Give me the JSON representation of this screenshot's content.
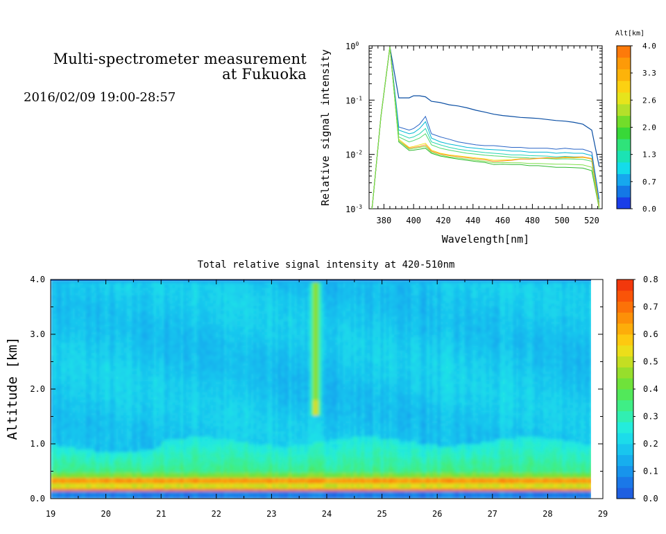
{
  "header": {
    "title_line1": "Multi-spectrometer measurement",
    "title_line2": "at Fukuoka",
    "time_range": "2016/02/09 19:00-28:57"
  },
  "chart_data": [
    {
      "type": "line",
      "xlabel": "Wavelength[nm]",
      "ylabel": "Relative signal intensity",
      "xlim": [
        370,
        527
      ],
      "ylim": [
        0.001,
        1
      ],
      "yscale": "log",
      "x_ticks": [
        380,
        400,
        420,
        440,
        460,
        480,
        500,
        520
      ],
      "y_ticks": [
        {
          "base": "10",
          "exp": "0"
        },
        {
          "base": "10",
          "exp": "-1"
        },
        {
          "base": "10",
          "exp": "-2"
        },
        {
          "base": "10",
          "exp": "-3"
        }
      ],
      "x": [
        372,
        378,
        384,
        390,
        397,
        400,
        404,
        408,
        412,
        418,
        424,
        430,
        436,
        442,
        448,
        454,
        460,
        466,
        472,
        478,
        484,
        490,
        496,
        502,
        508,
        514,
        520,
        525
      ],
      "series": [
        {
          "color": "#0a4ea3",
          "values": [
            0.001,
            0.05,
            0.95,
            0.11,
            0.11,
            0.12,
            0.12,
            0.115,
            0.095,
            0.09,
            0.082,
            0.078,
            0.072,
            0.065,
            0.06,
            0.055,
            0.052,
            0.05,
            0.048,
            0.047,
            0.046,
            0.044,
            0.042,
            0.041,
            0.039,
            0.036,
            0.028,
            0.006
          ]
        },
        {
          "color": "#2864c6",
          "values": [
            0.001,
            0.05,
            0.95,
            0.032,
            0.028,
            0.03,
            0.036,
            0.05,
            0.024,
            0.021,
            0.019,
            0.017,
            0.016,
            0.015,
            0.0145,
            0.0145,
            0.014,
            0.0135,
            0.0135,
            0.013,
            0.013,
            0.013,
            0.0125,
            0.013,
            0.0125,
            0.0125,
            0.011,
            0.0015
          ]
        },
        {
          "color": "#00b8d4",
          "values": [
            0.001,
            0.05,
            0.95,
            0.028,
            0.024,
            0.025,
            0.03,
            0.04,
            0.02,
            0.017,
            0.0155,
            0.0145,
            0.0135,
            0.013,
            0.0125,
            0.0122,
            0.012,
            0.0115,
            0.0115,
            0.011,
            0.011,
            0.011,
            0.0105,
            0.0108,
            0.0105,
            0.0105,
            0.0095,
            0.0013
          ]
        },
        {
          "color": "#24d6b0",
          "values": [
            0.001,
            0.05,
            0.95,
            0.024,
            0.02,
            0.021,
            0.024,
            0.03,
            0.017,
            0.015,
            0.0135,
            0.0125,
            0.0118,
            0.0113,
            0.0108,
            0.0105,
            0.0102,
            0.0098,
            0.0098,
            0.0095,
            0.0094,
            0.0093,
            0.009,
            0.0092,
            0.009,
            0.009,
            0.0082,
            0.0012
          ]
        },
        {
          "color": "#4cd96a",
          "values": [
            0.001,
            0.05,
            0.95,
            0.021,
            0.017,
            0.018,
            0.02,
            0.024,
            0.015,
            0.013,
            0.012,
            0.0112,
            0.0105,
            0.0101,
            0.0097,
            0.0094,
            0.0092,
            0.0089,
            0.0088,
            0.0086,
            0.0085,
            0.0084,
            0.0082,
            0.0083,
            0.0082,
            0.0081,
            0.0075,
            0.0011
          ]
        },
        {
          "color": "#f2e11a",
          "values": [
            0.001,
            0.05,
            0.95,
            0.019,
            0.0135,
            0.014,
            0.015,
            0.016,
            0.012,
            0.0105,
            0.0098,
            0.0094,
            0.009,
            0.0086,
            0.0083,
            0.0078,
            0.0079,
            0.008,
            0.0083,
            0.0082,
            0.0084,
            0.0086,
            0.0085,
            0.0087,
            0.0086,
            0.0088,
            0.0082,
            0.0011
          ]
        },
        {
          "color": "#ff8a1e",
          "values": [
            0.001,
            0.05,
            0.95,
            0.018,
            0.013,
            0.0135,
            0.014,
            0.015,
            0.0115,
            0.0102,
            0.0095,
            0.0091,
            0.0087,
            0.0083,
            0.008,
            0.0074,
            0.0076,
            0.0078,
            0.0082,
            0.0082,
            0.0085,
            0.0087,
            0.0086,
            0.0089,
            0.0088,
            0.009,
            0.0084,
            0.0011
          ]
        },
        {
          "color": "#2eb82e",
          "values": [
            0.001,
            0.05,
            0.95,
            0.017,
            0.0118,
            0.012,
            0.0125,
            0.013,
            0.0105,
            0.0093,
            0.0087,
            0.0082,
            0.0078,
            0.0074,
            0.0071,
            0.0065,
            0.0066,
            0.0065,
            0.0065,
            0.0062,
            0.0062,
            0.006,
            0.0058,
            0.0058,
            0.0057,
            0.0056,
            0.005,
            0.001
          ]
        },
        {
          "color": "#7fe04a",
          "values": [
            0.001,
            0.05,
            0.95,
            0.018,
            0.0125,
            0.0128,
            0.0135,
            0.014,
            0.011,
            0.0097,
            0.009,
            0.0086,
            0.0082,
            0.0078,
            0.0075,
            0.007,
            0.0071,
            0.007,
            0.007,
            0.0068,
            0.0068,
            0.0067,
            0.0066,
            0.0066,
            0.0065,
            0.0064,
            0.0058,
            0.001
          ]
        }
      ],
      "colorbar": {
        "title": "Alt[km]",
        "tick_labels": [
          "4.0",
          "3.3",
          "2.6",
          "2.0",
          "1.3",
          "0.7",
          "0.0"
        ],
        "colors_bottom_to_top": [
          "#1a3de8",
          "#1478e6",
          "#16a8ee",
          "#14dcea",
          "#1be3b4",
          "#2fe37a",
          "#38d838",
          "#72dd2a",
          "#b4e02a",
          "#e6e41c",
          "#fcd112",
          "#fdb30a",
          "#fd9a08",
          "#fd7a0a"
        ]
      }
    },
    {
      "type": "heatmap",
      "title": "Total relative signal intensity at 420-510nm",
      "ylabel": "Altitude [km]",
      "xlim": [
        19,
        29
      ],
      "ylim": [
        0,
        4
      ],
      "x_data_end": 28.8,
      "x_ticks": [
        "19",
        "20",
        "21",
        "22",
        "23",
        "24",
        "25",
        "26",
        "27",
        "28",
        "29"
      ],
      "y_ticks": [
        "0.0",
        "1.0",
        "2.0",
        "3.0",
        "4.0"
      ],
      "features": {
        "surface_layer_km": [
          0.15,
          0.45
        ],
        "aerosol_layer_top_km": 1.05,
        "plume_time": 23.8,
        "plume_altitude_km": [
          1.5,
          4.0
        ]
      },
      "colorbar": {
        "tick_labels": [
          "0.8",
          "0.7",
          "0.6",
          "0.5",
          "0.4",
          "0.3",
          "0.2",
          "0.1",
          "0.0"
        ],
        "vmin": 0,
        "vmax": 0.8,
        "colors_bottom_to_top": [
          "#1f5fe0",
          "#1a78e8",
          "#1794ec",
          "#17aeee",
          "#19c6ee",
          "#1cdcea",
          "#24ecdc",
          "#31efb2",
          "#3fee86",
          "#52e85a",
          "#6fe23a",
          "#97de2c",
          "#c4de22",
          "#ecde1a",
          "#fdc910",
          "#fdad0a",
          "#fd9008",
          "#fc7208",
          "#fa5408",
          "#f2380c"
        ]
      }
    }
  ]
}
